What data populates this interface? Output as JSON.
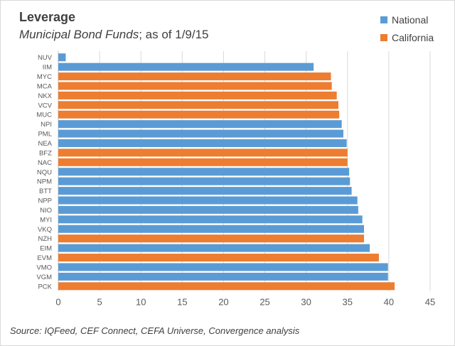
{
  "colors": {
    "national": "#5b9bd5",
    "california": "#ed7d31",
    "gridline": "#d9d9d9",
    "text": "#404040"
  },
  "header": {
    "title": "Leverage",
    "subtitle_italic": "Municipal Bond Funds",
    "subtitle_rest": "; as of 1/9/15"
  },
  "legend": {
    "items": [
      {
        "label": "National",
        "color": "#5b9bd5"
      },
      {
        "label": "California",
        "color": "#ed7d31"
      }
    ]
  },
  "footer": {
    "source": "Source:  IQFeed, CEF Connect, CEFA Universe, Convergence analysis"
  },
  "chart_data": {
    "type": "bar",
    "orientation": "horizontal",
    "title": "Leverage",
    "subtitle": "Municipal Bond Funds; as of 1/9/15",
    "xlabel": "",
    "ylabel": "",
    "xlim": [
      0,
      45
    ],
    "xticks": [
      0,
      5,
      10,
      15,
      20,
      25,
      30,
      35,
      40,
      45
    ],
    "grid": "vertical",
    "legend_position": "top-right",
    "categories": [
      "NUV",
      "IIM",
      "MYC",
      "MCA",
      "NKX",
      "VCV",
      "MUC",
      "NPI",
      "PML",
      "NEA",
      "BFZ",
      "NAC",
      "NQU",
      "NPM",
      "BTT",
      "NPP",
      "NIO",
      "MYI",
      "VKQ",
      "NZH",
      "EIM",
      "EVM",
      "VMO",
      "VGM",
      "PCK"
    ],
    "values": [
      0.9,
      30.9,
      33.0,
      33.1,
      33.7,
      33.9,
      34.0,
      34.3,
      34.5,
      34.9,
      35.0,
      35.0,
      35.2,
      35.3,
      35.5,
      36.2,
      36.3,
      36.8,
      37.0,
      37.0,
      37.7,
      38.8,
      39.9,
      39.9,
      40.7
    ],
    "groups": [
      "National",
      "National",
      "California",
      "California",
      "California",
      "California",
      "California",
      "National",
      "National",
      "National",
      "California",
      "California",
      "National",
      "National",
      "National",
      "National",
      "National",
      "National",
      "National",
      "California",
      "National",
      "California",
      "National",
      "National",
      "California"
    ],
    "series": [
      {
        "name": "National",
        "color": "#5b9bd5"
      },
      {
        "name": "California",
        "color": "#ed7d31"
      }
    ]
  }
}
